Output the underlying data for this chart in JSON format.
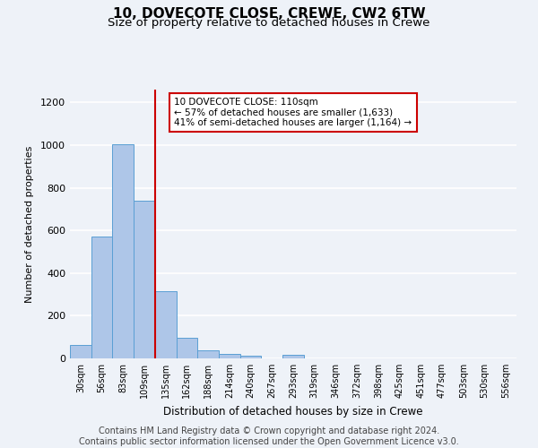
{
  "title1": "10, DOVECOTE CLOSE, CREWE, CW2 6TW",
  "title2": "Size of property relative to detached houses in Crewe",
  "xlabel": "Distribution of detached houses by size in Crewe",
  "ylabel": "Number of detached properties",
  "footer": "Contains HM Land Registry data © Crown copyright and database right 2024.\nContains public sector information licensed under the Open Government Licence v3.0.",
  "categories": [
    "30sqm",
    "56sqm",
    "83sqm",
    "109sqm",
    "135sqm",
    "162sqm",
    "188sqm",
    "214sqm",
    "240sqm",
    "267sqm",
    "293sqm",
    "319sqm",
    "346sqm",
    "372sqm",
    "398sqm",
    "425sqm",
    "451sqm",
    "477sqm",
    "503sqm",
    "530sqm",
    "556sqm"
  ],
  "values": [
    63,
    570,
    1005,
    740,
    315,
    95,
    37,
    23,
    13,
    0,
    15,
    0,
    0,
    0,
    0,
    0,
    0,
    0,
    0,
    0,
    0
  ],
  "bar_color": "#aec6e8",
  "bar_edge_color": "#5a9fd4",
  "property_line_bin_index": 3.5,
  "annotation_text": "10 DOVECOTE CLOSE: 110sqm\n← 57% of detached houses are smaller (1,633)\n41% of semi-detached houses are larger (1,164) →",
  "annotation_box_color": "#ffffff",
  "annotation_box_edge_color": "#cc0000",
  "annotation_text_color": "#000000",
  "line_color": "#cc0000",
  "ylim": [
    0,
    1260
  ],
  "yticks": [
    0,
    200,
    400,
    600,
    800,
    1000,
    1200
  ],
  "bg_color": "#eef2f8",
  "axes_bg_color": "#eef2f8",
  "grid_color": "#ffffff",
  "title1_fontsize": 11,
  "title2_fontsize": 9.5,
  "footer_fontsize": 7.0
}
